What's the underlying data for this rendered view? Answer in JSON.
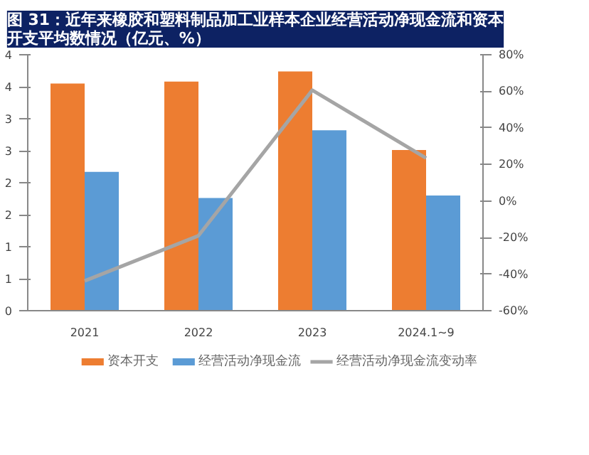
{
  "chart_data": {
    "type": "bar",
    "title": "图 31：近年来橡胶和塑料制品加工业样本企业经营活动净现金流和资本开支平均数情况（亿元、%）",
    "categories": [
      "2021",
      "2022",
      "2023",
      "2024.1~9"
    ],
    "series": [
      {
        "name": "资本开支",
        "color": "#ed7d31",
        "values": [
          3.55,
          3.58,
          3.74,
          2.51
        ]
      },
      {
        "name": "经营活动净现金流",
        "color": "#5b9bd5",
        "values": [
          2.17,
          1.76,
          2.82,
          1.8
        ]
      },
      {
        "name": "经营活动净现金流变动率",
        "type": "line",
        "axis": "y2",
        "color": "#a5a5a5",
        "values": [
          -43.7,
          -19,
          60.6,
          23.5
        ]
      }
    ],
    "ylim": [
      0,
      4
    ],
    "yticks": [
      0,
      {
        "value": 0.5,
        "label": "1"
      },
      1,
      {
        "value": 1.5,
        "label": "2"
      },
      2,
      {
        "value": 2.5,
        "label": "3"
      },
      3,
      {
        "value": 3.5,
        "label": "4"
      },
      4
    ],
    "y2lim": [
      -60,
      80
    ],
    "y2ticks": [
      {
        "value": -60,
        "label": "-60%"
      },
      {
        "value": -40,
        "label": "-40%"
      },
      {
        "value": -20,
        "label": "-20%"
      },
      {
        "value": 0,
        "label": "0%"
      },
      {
        "value": 20,
        "label": "20%"
      },
      {
        "value": 40,
        "label": "40%"
      },
      {
        "value": 60,
        "label": "60%"
      },
      {
        "value": 80,
        "label": "80%"
      }
    ],
    "legend": "bottom"
  }
}
